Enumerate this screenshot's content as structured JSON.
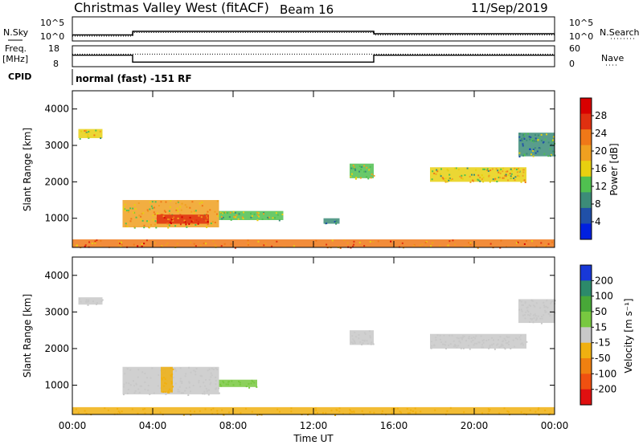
{
  "header": {
    "radar_name": "Christmas Valley West (fitACF)",
    "beam": "Beam 16",
    "date": "11/Sep/2019"
  },
  "colors": {
    "power_scale": [
      "#0020e0",
      "#2050a8",
      "#3c8c78",
      "#50c050",
      "#e8d010",
      "#f0a020",
      "#f07818",
      "#e03010",
      "#d80000"
    ],
    "velocity_scale": [
      "#1838d8",
      "#2c8a6a",
      "#48a838",
      "#78c840",
      "#c8c8c8",
      "#f0b010",
      "#f08010",
      "#f05010",
      "#e01010"
    ]
  },
  "chart_data": [
    {
      "panel": "nsky-nsearch",
      "type": "line",
      "left_label": "N.Sky",
      "right_label": "N.Search",
      "left_ticks": [
        "10^5",
        "10^0"
      ],
      "right_ticks": [
        "10^5",
        "10^0"
      ],
      "series": [
        {
          "style": "solid",
          "x": [
            0,
            3,
            3.01,
            15,
            15.01,
            24
          ],
          "y": [
            0.25,
            0.25,
            0.4,
            0.4,
            0.3,
            0.3
          ]
        },
        {
          "style": "dotted",
          "x": [
            0,
            3,
            3.01,
            15,
            15.01,
            24
          ],
          "y": [
            0.2,
            0.2,
            0.35,
            0.35,
            0.25,
            0.25
          ]
        }
      ]
    },
    {
      "panel": "freq-nave",
      "type": "line",
      "left_label": "Freq.",
      "left_unit": "[MHz]",
      "right_label": "Nave",
      "left_ticks": [
        "18",
        "8"
      ],
      "right_ticks": [
        "60",
        "0"
      ],
      "series": [
        {
          "name": "Freq",
          "x": [
            0,
            3,
            3,
            15,
            15,
            24
          ],
          "y": [
            13.5,
            13.5,
            10.2,
            10.2,
            13.5,
            13.5
          ]
        },
        {
          "name": "Nave",
          "style": "dotted",
          "x": [
            0,
            24
          ],
          "y": [
            14,
            14
          ]
        }
      ]
    },
    {
      "panel": "cpid",
      "label": "CPID",
      "text": "normal (fast) -151 RF"
    },
    {
      "panel": "power",
      "type": "heatmap",
      "ylabel": "Slant Range [km]",
      "ylim": [
        200,
        4500
      ],
      "yticks": [
        "1000",
        "2000",
        "3000",
        "4000"
      ],
      "xlim": [
        0,
        24
      ],
      "colorbar": {
        "label": "Power [dB]",
        "range": [
          0,
          32
        ],
        "ticks": [
          "4",
          "8",
          "12",
          "16",
          "20",
          "24",
          "28"
        ]
      },
      "regions": [
        {
          "t0": 0.3,
          "t1": 1.5,
          "r0": 3200,
          "r1": 3450,
          "v": 16
        },
        {
          "t0": 2.5,
          "t1": 7.3,
          "r0": 750,
          "r1": 1500,
          "v": 18
        },
        {
          "t0": 4.2,
          "t1": 6.8,
          "r0": 850,
          "r1": 1100,
          "v": 26
        },
        {
          "t0": 7.3,
          "t1": 10.5,
          "r0": 950,
          "r1": 1200,
          "v": 14
        },
        {
          "t0": 12.5,
          "t1": 13.3,
          "r0": 850,
          "r1": 1000,
          "v": 10
        },
        {
          "t0": 13.8,
          "t1": 15.0,
          "r0": 2100,
          "r1": 2500,
          "v": 14
        },
        {
          "t0": 17.8,
          "t1": 22.6,
          "r0": 2000,
          "r1": 2400,
          "v": 16
        },
        {
          "t0": 22.2,
          "t1": 24,
          "r0": 2700,
          "r1": 3350,
          "v": 10
        },
        {
          "t0": 0,
          "t1": 24,
          "r0": 200,
          "r1": 420,
          "v": 22
        }
      ]
    },
    {
      "panel": "velocity",
      "type": "heatmap",
      "ylabel": "Slant Range [km]",
      "ylim": [
        200,
        4500
      ],
      "yticks": [
        "1000",
        "2000",
        "3000",
        "4000"
      ],
      "xlabel": "Time UT",
      "xlim": [
        0,
        24
      ],
      "xticks": [
        "00:00",
        "04:00",
        "08:00",
        "12:00",
        "16:00",
        "20:00",
        "00:00"
      ],
      "colorbar": {
        "label": "Velocity [m s⁻¹]",
        "ticks": [
          "200",
          "100",
          "50",
          "15",
          "-15",
          "-50",
          "-100",
          "-200"
        ]
      },
      "regions": [
        {
          "t0": 0.3,
          "t1": 1.5,
          "r0": 3200,
          "r1": 3400,
          "v": 0
        },
        {
          "t0": 2.5,
          "t1": 7.3,
          "r0": 750,
          "r1": 1500,
          "v": 0
        },
        {
          "t0": 4.4,
          "t1": 5.0,
          "r0": 800,
          "r1": 1500,
          "v": -40
        },
        {
          "t0": 7.3,
          "t1": 9.2,
          "r0": 950,
          "r1": 1150,
          "v": 25
        },
        {
          "t0": 13.8,
          "t1": 15.0,
          "r0": 2100,
          "r1": 2500,
          "v": 0
        },
        {
          "t0": 17.8,
          "t1": 22.6,
          "r0": 2000,
          "r1": 2400,
          "v": 0
        },
        {
          "t0": 22.2,
          "t1": 24,
          "r0": 2700,
          "r1": 3350,
          "v": 0
        },
        {
          "t0": 0,
          "t1": 24,
          "r0": 200,
          "r1": 400,
          "v": -40
        }
      ]
    }
  ]
}
